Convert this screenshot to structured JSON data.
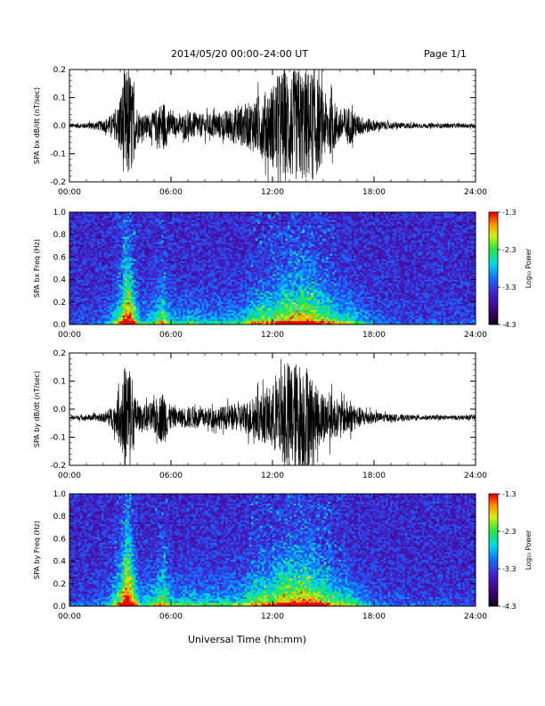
{
  "header": {
    "title": "2014/05/20  00:00–24:00 UT",
    "page": "Page 1/1"
  },
  "footer": {
    "xlabel": "Universal Time (hh:mm)"
  },
  "colors": {
    "trace": "#000000",
    "axis": "#000000",
    "background": "#ffffff"
  },
  "chart_data": [
    {
      "id": "bx-dbdt",
      "type": "line",
      "ylabel": "SPA bx dB/dt (nT/sec)",
      "x_ticks": [
        "00:00",
        "06:00",
        "12:00",
        "18:00",
        "24:00"
      ],
      "x_range_hours": [
        0,
        24
      ],
      "y_ticks": [
        "0.2",
        "0.1",
        "0.0",
        "-0.1",
        "-0.2"
      ],
      "ylim": [
        -0.2,
        0.2
      ],
      "envelope": {
        "baseline": 0.0,
        "hours": [
          0,
          1,
          2,
          2.5,
          2.8,
          3.0,
          3.3,
          3.6,
          3.9,
          4.2,
          4.6,
          5.0,
          5.3,
          5.6,
          5.9,
          6.3,
          7,
          8,
          9,
          10,
          10.5,
          11,
          11.5,
          12,
          12.5,
          13,
          13.5,
          14,
          14.5,
          15,
          15.5,
          16,
          16.5,
          17,
          18,
          19,
          20,
          21,
          22,
          23,
          24
        ],
        "amplitude": [
          0.008,
          0.01,
          0.02,
          0.04,
          0.06,
          0.12,
          0.2,
          0.2,
          0.09,
          0.04,
          0.04,
          0.05,
          0.08,
          0.09,
          0.05,
          0.03,
          0.05,
          0.04,
          0.05,
          0.07,
          0.08,
          0.1,
          0.12,
          0.15,
          0.2,
          0.2,
          0.2,
          0.2,
          0.2,
          0.12,
          0.1,
          0.06,
          0.07,
          0.04,
          0.02,
          0.012,
          0.01,
          0.008,
          0.008,
          0.008,
          0.008
        ]
      }
    },
    {
      "id": "bx-spectrogram",
      "type": "heatmap",
      "ylabel": "SPA bx Freq (Hz)",
      "x_ticks": [
        "00:00",
        "06:00",
        "12:00",
        "18:00",
        "24:00"
      ],
      "x_range_hours": [
        0,
        24
      ],
      "y_ticks": [
        "1.0",
        "0.8",
        "0.6",
        "0.4",
        "0.2",
        "0.0"
      ],
      "ylim": [
        0,
        1.0
      ],
      "colorbar": {
        "label": "Log₁₀ Power",
        "ticks": [
          "-1.3",
          "-2.3",
          "-3.3",
          "-4.3"
        ],
        "range": [
          -4.3,
          -1.3
        ]
      },
      "activity_hours": [
        0,
        1,
        2,
        2.5,
        2.8,
        3.0,
        3.3,
        3.6,
        3.9,
        4.2,
        4.6,
        5.0,
        5.3,
        5.6,
        5.9,
        6.3,
        7,
        8,
        9,
        10,
        10.5,
        11,
        11.5,
        12,
        12.5,
        13,
        13.5,
        14,
        14.5,
        15,
        15.5,
        16,
        16.5,
        17,
        18,
        19,
        20,
        21,
        22,
        23,
        24
      ],
      "activity_level": [
        0.1,
        0.1,
        0.15,
        0.35,
        0.55,
        0.6,
        0.95,
        0.9,
        0.6,
        0.3,
        0.35,
        0.4,
        0.55,
        0.6,
        0.4,
        0.3,
        0.35,
        0.3,
        0.3,
        0.35,
        0.45,
        0.55,
        0.6,
        0.6,
        0.7,
        0.75,
        0.75,
        0.8,
        0.75,
        0.65,
        0.55,
        0.45,
        0.5,
        0.35,
        0.2,
        0.12,
        0.1,
        0.1,
        0.1,
        0.1,
        0.1
      ]
    },
    {
      "id": "by-dbdt",
      "type": "line",
      "ylabel": "SPA by dB/dt (nT/sec)",
      "x_ticks": [
        "00:00",
        "06:00",
        "12:00",
        "18:00",
        "24:00"
      ],
      "x_range_hours": [
        0,
        24
      ],
      "y_ticks": [
        "0.2",
        "0.1",
        "0.0",
        "-0.1",
        "-0.2"
      ],
      "ylim": [
        -0.2,
        0.2
      ],
      "envelope": {
        "baseline": -0.03,
        "hours": [
          0,
          1,
          2,
          2.5,
          2.8,
          3.0,
          3.3,
          3.6,
          3.9,
          4.2,
          4.6,
          5.0,
          5.3,
          5.6,
          5.9,
          6.3,
          7,
          8,
          9,
          10,
          10.5,
          11,
          11.5,
          12,
          12.5,
          13,
          13.5,
          14,
          14.5,
          15,
          15.5,
          16,
          16.5,
          17,
          18,
          19,
          20,
          21,
          22,
          23,
          24
        ],
        "amplitude": [
          0.008,
          0.01,
          0.015,
          0.04,
          0.06,
          0.11,
          0.2,
          0.2,
          0.07,
          0.04,
          0.05,
          0.06,
          0.08,
          0.1,
          0.05,
          0.03,
          0.04,
          0.035,
          0.04,
          0.05,
          0.06,
          0.08,
          0.09,
          0.12,
          0.15,
          0.2,
          0.2,
          0.2,
          0.12,
          0.09,
          0.08,
          0.06,
          0.06,
          0.04,
          0.02,
          0.012,
          0.01,
          0.008,
          0.008,
          0.008,
          0.008
        ]
      }
    },
    {
      "id": "by-spectrogram",
      "type": "heatmap",
      "ylabel": "SPA by Freq (Hz)",
      "x_ticks": [
        "00:00",
        "06:00",
        "12:00",
        "18:00",
        "24:00"
      ],
      "x_range_hours": [
        0,
        24
      ],
      "y_ticks": [
        "1.0",
        "0.8",
        "0.6",
        "0.4",
        "0.2",
        "0.0"
      ],
      "ylim": [
        0,
        1.0
      ],
      "colorbar": {
        "label": "Log₁₀ Power",
        "ticks": [
          "-1.3",
          "-2.3",
          "-3.3",
          "-4.3"
        ],
        "range": [
          -4.3,
          -1.3
        ]
      },
      "activity_hours": [
        0,
        1,
        2,
        2.5,
        2.8,
        3.0,
        3.3,
        3.6,
        3.9,
        4.2,
        4.6,
        5.0,
        5.3,
        5.6,
        5.9,
        6.3,
        7,
        8,
        9,
        10,
        10.5,
        11,
        11.5,
        12,
        12.5,
        13,
        13.5,
        14,
        14.5,
        15,
        15.5,
        16,
        16.5,
        17,
        18,
        19,
        20,
        21,
        22,
        23,
        24
      ],
      "activity_level": [
        0.1,
        0.1,
        0.15,
        0.4,
        0.6,
        0.65,
        1.0,
        0.95,
        0.65,
        0.35,
        0.4,
        0.45,
        0.6,
        0.65,
        0.45,
        0.35,
        0.4,
        0.35,
        0.35,
        0.4,
        0.5,
        0.6,
        0.65,
        0.65,
        0.75,
        0.8,
        0.8,
        0.8,
        0.75,
        0.65,
        0.6,
        0.5,
        0.5,
        0.35,
        0.2,
        0.12,
        0.1,
        0.1,
        0.1,
        0.1,
        0.1
      ]
    }
  ]
}
